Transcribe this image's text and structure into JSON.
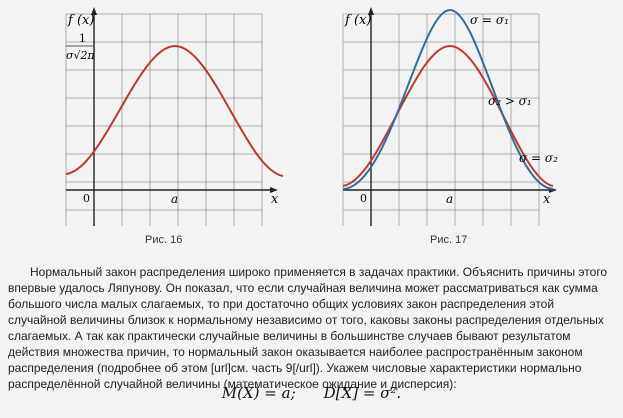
{
  "figures": [
    {
      "caption": "Рис. 16",
      "y_axis_label": "f (x)",
      "x_axis_label": "x",
      "origin_label": "0",
      "mean_label": "a",
      "peak_label_numerator": "1",
      "peak_label_denominator": "σ√2π",
      "curve_color": "#c0392b"
    },
    {
      "caption": "Рис. 17",
      "y_axis_label": "f (x)",
      "x_axis_label": "x",
      "origin_label": "0",
      "mean_label": "a",
      "annotations": [
        "σ = σ₁",
        "σ₂ > σ₁",
        "σ = σ₂"
      ],
      "curves": [
        {
          "label": "σ = σ₁",
          "color": "#2e6da4"
        },
        {
          "label": "σ = σ₂",
          "color": "#c0392b"
        }
      ]
    }
  ],
  "paragraph": "Нормальный закон распределения широко применяется в задачах практики. Объяснить причины этого впервые удалось Ляпунову. Он показал, что если случайная величина может рассматриваться как сумма большого числа малых слагаемых, то при достаточно общих условиях закон распределения этой случайной величины близок к нормальному независимо от того, каковы законы распределения отдельных слагаемых. А так как практически случайные величины в большинстве случаев бывают результатом действия множества причин, то нормальный закон оказывается наиболее распространённым законом распределения (подробнее об этом [url]см. часть 9[/url]). Укажем числовые характеристики нормально распределённой случайной величины (математическое ожидание и дисперсия):",
  "formula": {
    "expectation": "M(X) = a;",
    "variance": "D[X] = σ²."
  }
}
